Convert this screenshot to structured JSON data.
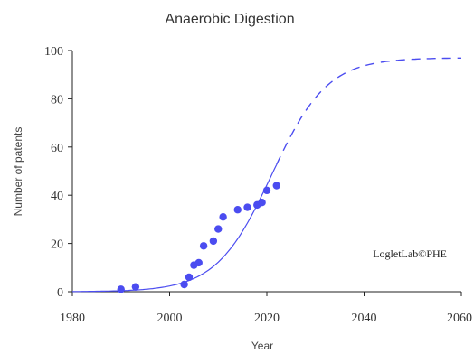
{
  "chart_data": {
    "type": "scatter",
    "title": "Anaerobic Digestion",
    "xlabel": "Year",
    "ylabel": "Number of patents",
    "xlim": [
      1980,
      2060
    ],
    "ylim": [
      0,
      100
    ],
    "x_ticks": [
      1980,
      2000,
      2020,
      2040,
      2060
    ],
    "y_ticks": [
      0,
      20,
      40,
      60,
      80,
      100
    ],
    "grid": false,
    "legend": "none",
    "credit": "LogletLab©PHE",
    "colors": {
      "points": "#4b4cf0",
      "curve": "#4b4cf0",
      "axis": "#222222"
    },
    "series": [
      {
        "kind": "points",
        "x": [
          1990,
          1993,
          2003,
          2004,
          2005,
          2006,
          2007,
          2009,
          2010,
          2011,
          2014,
          2016,
          2018,
          2019,
          2020,
          2022
        ],
        "y": [
          1,
          2,
          3,
          6,
          11,
          12,
          19,
          21,
          26,
          31,
          34,
          35,
          36,
          37,
          42,
          44
        ]
      },
      {
        "kind": "logistic-fit",
        "saturation": 97,
        "midpoint": 2021,
        "growth_time": 25,
        "solid_until": 2022
      }
    ]
  }
}
